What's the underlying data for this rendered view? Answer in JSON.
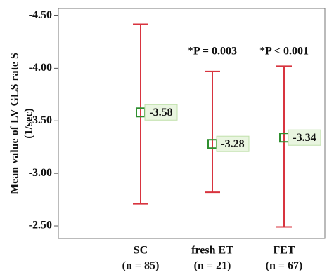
{
  "chart_data": {
    "type": "errorbar",
    "y_label": "Mean value of LV GLS rate S",
    "y_unit": "(1/sec)",
    "categories": [
      "SC",
      "fresh ET",
      "FET"
    ],
    "category_notes": [
      "(n = 85)",
      "(n = 21)",
      "(n = 67)"
    ],
    "annotations": [
      null,
      "*P = 0.003",
      "*P < 0.001"
    ],
    "values": [
      -3.58,
      -3.28,
      -3.34
    ],
    "ci_low": [
      -4.42,
      -3.97,
      -4.02
    ],
    "ci_high": [
      -2.71,
      -2.82,
      -2.49
    ],
    "ylim": [
      -2.38,
      -4.57
    ],
    "yticks": [
      {
        "value": -4.5,
        "label": "-4.50"
      },
      {
        "value": -4.0,
        "label": "-4.00"
      },
      {
        "value": -3.5,
        "label": "-3.50"
      },
      {
        "value": -3.0,
        "label": "-3.00"
      },
      {
        "value": -2.5,
        "label": "-2.50"
      }
    ],
    "bar_color": "#d8343f",
    "marker_color": "#2f8f2f"
  }
}
